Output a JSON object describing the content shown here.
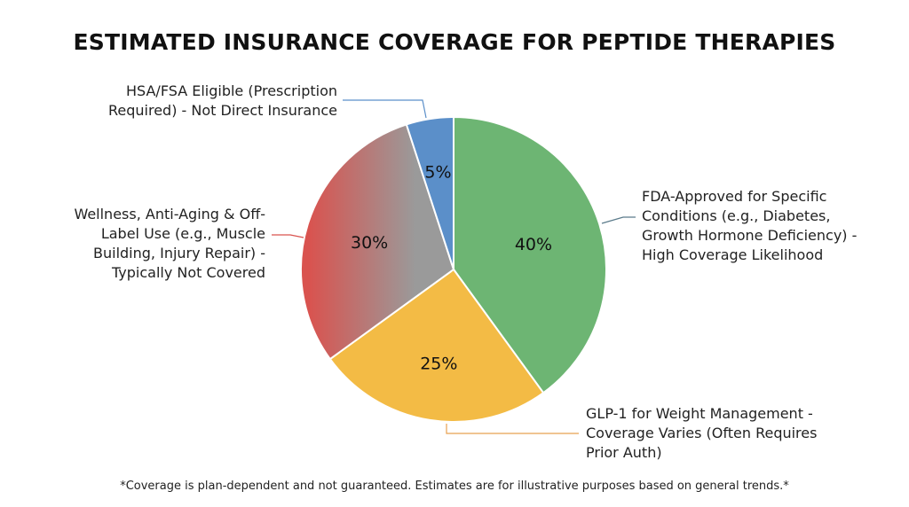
{
  "chart_data": {
    "type": "pie",
    "title": "ESTIMATED INSURANCE COVERAGE FOR PEPTIDE THERAPIES",
    "slices": [
      {
        "label": "FDA-Approved for Specific Conditions (e.g., Diabetes, Growth Hormone Deficiency) - High Coverage Likelihood",
        "value": 40,
        "display": "40%",
        "color": "#6db573"
      },
      {
        "label": "GLP-1 for Weight Management - Coverage Varies (Often Requires Prior Auth)",
        "value": 25,
        "display": "25%",
        "color": "#f3bb45"
      },
      {
        "label": "Wellness, Anti-Aging & Off-Label Use (e.g., Muscle Building, Injury Repair) - Typically Not Covered",
        "value": 30,
        "display": "30%",
        "color": "#d9534f",
        "color2": "#9a9a9a"
      },
      {
        "label": "HSA/FSA Eligible (Prescription Required) - Not Direct Insurance",
        "value": 5,
        "display": "5%",
        "color": "#5b8fc9"
      }
    ],
    "start_angle": "12 o'clock, clockwise",
    "footnote": "*Coverage is plan-dependent and not guaranteed. Estimates are for illustrative purposes based on general trends.*"
  }
}
